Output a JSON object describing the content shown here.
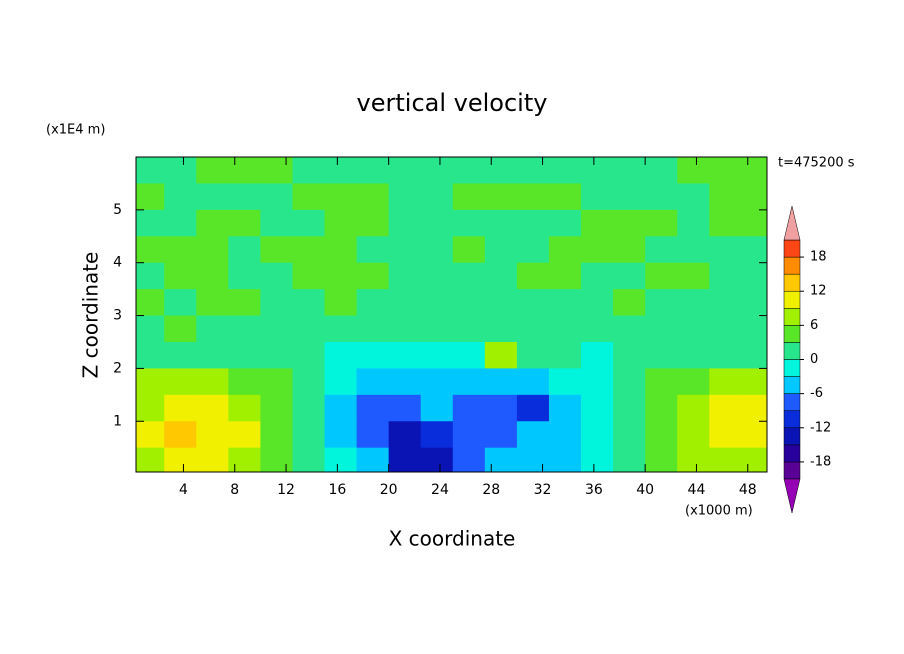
{
  "chart_data": {
    "type": "contour",
    "title": "vertical velocity",
    "x_label": "X coordinate",
    "y_label": "Z coordinate",
    "x_unit": "(x1000 m)",
    "y_unit": "(x1E4 m)",
    "annotation": "t=475200 s",
    "xlim": [
      0.3,
      49.5
    ],
    "ylim": [
      0.04,
      6
    ],
    "xticks": [
      4,
      8,
      12,
      16,
      20,
      24,
      28,
      32,
      36,
      40,
      44,
      48
    ],
    "yticks": [
      1,
      2,
      3,
      4,
      5
    ],
    "x": [
      1.25,
      3.75,
      6.25,
      8.75,
      11.25,
      13.75,
      16.25,
      18.75,
      21.25,
      23.75,
      26.25,
      28.75,
      31.25,
      33.75,
      36.25,
      38.75,
      41.25,
      43.75,
      46.25,
      48.75
    ],
    "y": [
      5.75,
      5.25,
      4.75,
      4.25,
      3.75,
      3.25,
      2.75,
      2.25,
      1.75,
      1.25,
      0.75,
      0.25
    ],
    "z": [
      [
        1,
        1,
        4,
        4,
        4,
        1,
        1,
        1,
        1,
        1,
        1,
        1,
        1,
        1,
        1,
        1,
        1,
        4,
        4,
        4
      ],
      [
        4,
        1,
        1,
        1,
        1,
        4,
        4,
        4,
        1,
        1,
        4,
        4,
        4,
        4,
        1,
        1,
        1,
        1,
        4,
        4
      ],
      [
        1,
        1,
        4,
        4,
        1,
        1,
        4,
        4,
        1,
        1,
        1,
        1,
        1,
        1,
        4,
        4,
        4,
        1,
        4,
        4
      ],
      [
        4,
        4,
        4,
        1,
        4,
        4,
        4,
        1,
        1,
        1,
        4,
        1,
        1,
        4,
        4,
        4,
        1,
        1,
        1,
        1
      ],
      [
        1,
        4,
        4,
        1,
        1,
        4,
        4,
        4,
        1,
        1,
        1,
        1,
        4,
        4,
        1,
        1,
        4,
        4,
        1,
        1
      ],
      [
        4,
        1,
        4,
        4,
        1,
        2,
        4,
        1,
        1,
        2,
        1,
        1,
        2,
        1,
        1,
        4,
        1,
        1,
        1,
        1
      ],
      [
        2,
        4,
        2,
        1,
        2,
        1,
        1,
        2,
        1,
        1,
        2,
        2,
        1,
        1,
        1,
        2,
        1,
        1,
        2,
        1
      ],
      [
        2,
        2,
        2,
        2,
        2,
        1,
        -1,
        -2,
        -3,
        -2,
        -1,
        7,
        1,
        0,
        -1,
        1,
        2,
        2,
        2,
        2
      ],
      [
        6,
        6,
        6,
        5,
        4,
        1,
        -2,
        -5,
        -6,
        -5,
        -4,
        -6,
        -5,
        -3,
        -2,
        1,
        3,
        5,
        7,
        6
      ],
      [
        8,
        10,
        9,
        7,
        5,
        1,
        -4,
        -7,
        -8,
        -6,
        -8,
        -9,
        -10,
        -5,
        -3,
        0,
        4,
        7,
        10,
        9
      ],
      [
        10,
        13,
        11,
        9,
        5,
        2,
        -4,
        -7,
        -13,
        -12,
        -8,
        -7,
        -6,
        -4,
        -3,
        0,
        4,
        7,
        10,
        10
      ],
      [
        8,
        10,
        10,
        8,
        5,
        2,
        -3,
        -5,
        -13,
        -13,
        -7,
        -5,
        -5,
        -4,
        -2,
        1,
        4,
        7,
        8,
        8
      ]
    ],
    "levels": [
      -21,
      -18,
      -15,
      -12,
      -9,
      -6,
      -3,
      0,
      3,
      6,
      9,
      12,
      15,
      18,
      21
    ],
    "colors": [
      "#5a0096",
      "#28009b",
      "#0a14b4",
      "#0a2ddc",
      "#1e5aff",
      "#00c8ff",
      "#00f5dc",
      "#28e68c",
      "#5ae628",
      "#a0f000",
      "#f0f000",
      "#ffc800",
      "#ff8c00",
      "#ff4614"
    ],
    "extend_colors": [
      "#9600b4",
      "#f0a0a0"
    ],
    "colorbar_ticks": [
      -18,
      -12,
      -6,
      0,
      6,
      12,
      18
    ]
  }
}
